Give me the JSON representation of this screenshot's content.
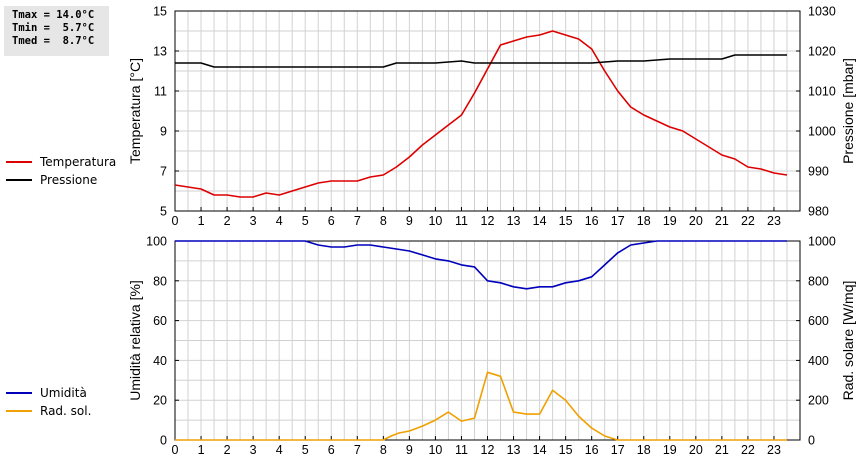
{
  "stats": {
    "tmax": "Tmax = 14.0°C",
    "tmin": "Tmin =  5.7°C",
    "tmed": "Tmed =  8.7°C"
  },
  "legend_top": [
    {
      "name": "Temperatura",
      "color": "#dd0000"
    },
    {
      "name": "Pressione",
      "color": "#000000"
    }
  ],
  "legend_bottom": [
    {
      "name": "Umidità",
      "color": "#0000bb"
    },
    {
      "name": "Rad. sol.",
      "color": "#f0a000"
    }
  ],
  "chart_data": [
    {
      "type": "line",
      "title": "",
      "xlabel": "",
      "xlim": [
        0,
        24
      ],
      "x_ticks": [
        "0",
        "1",
        "2",
        "3",
        "4",
        "5",
        "6",
        "7",
        "8",
        "9",
        "10",
        "11",
        "12",
        "13",
        "14",
        "15",
        "16",
        "17",
        "18",
        "19",
        "20",
        "21",
        "22",
        "23"
      ],
      "ylabel": "Temperatura [°C]",
      "ylim": [
        5,
        15
      ],
      "y_ticks": [
        "5",
        "7",
        "9",
        "11",
        "13",
        "15"
      ],
      "y2label": "Pressione [mbar]",
      "y2lim": [
        980,
        1030
      ],
      "y2_ticks": [
        "980",
        "990",
        "1000",
        "1010",
        "1020",
        "1030"
      ],
      "grid": true,
      "series": [
        {
          "name": "Temperatura",
          "axis": "left",
          "color": "#dd0000",
          "x": [
            0,
            0.5,
            1,
            1.5,
            2,
            2.5,
            3,
            3.5,
            4,
            4.5,
            5,
            5.5,
            6,
            6.5,
            7,
            7.5,
            8,
            8.5,
            9,
            9.5,
            10,
            10.5,
            11,
            11.5,
            12,
            12.5,
            13,
            13.5,
            14,
            14.5,
            15,
            15.5,
            16,
            16.5,
            17,
            17.5,
            18,
            18.5,
            19,
            19.5,
            20,
            20.5,
            21,
            21.5,
            22,
            22.5,
            23,
            23.5
          ],
          "y": [
            6.3,
            6.2,
            6.1,
            5.8,
            5.8,
            5.7,
            5.7,
            5.9,
            5.8,
            6.0,
            6.2,
            6.4,
            6.5,
            6.5,
            6.5,
            6.7,
            6.8,
            7.2,
            7.7,
            8.3,
            8.8,
            9.3,
            9.8,
            10.9,
            12.1,
            13.3,
            13.5,
            13.7,
            13.8,
            14.0,
            13.8,
            13.6,
            13.1,
            12.0,
            11.0,
            10.2,
            9.8,
            9.5,
            9.2,
            9.0,
            8.6,
            8.2,
            7.8,
            7.6,
            7.2,
            7.1,
            6.9,
            6.8
          ]
        },
        {
          "name": "Pressione",
          "axis": "right",
          "color": "#000000",
          "x": [
            0,
            1,
            1.5,
            3,
            8,
            8.5,
            10,
            11,
            11.5,
            12,
            14,
            16,
            17,
            18,
            19,
            21,
            21.5,
            23.5
          ],
          "y": [
            1017,
            1017,
            1016,
            1016,
            1016,
            1017,
            1017,
            1017.5,
            1017,
            1017,
            1017,
            1017,
            1017.5,
            1017.5,
            1018,
            1018,
            1019,
            1019
          ]
        }
      ]
    },
    {
      "type": "line",
      "title": "",
      "xlabel": "",
      "xlim": [
        0,
        24
      ],
      "x_ticks": [
        "0",
        "1",
        "2",
        "3",
        "4",
        "5",
        "6",
        "7",
        "8",
        "9",
        "10",
        "11",
        "12",
        "13",
        "14",
        "15",
        "16",
        "17",
        "18",
        "19",
        "20",
        "21",
        "22",
        "23"
      ],
      "ylabel": "Umidità relativa [%]",
      "ylim": [
        0,
        100
      ],
      "y_ticks": [
        "0",
        "20",
        "40",
        "60",
        "80",
        "100"
      ],
      "y2label": "Rad. solare [W/mq]",
      "y2lim": [
        0,
        1000
      ],
      "y2_ticks": [
        "0",
        "200",
        "400",
        "600",
        "800",
        "1000"
      ],
      "grid": true,
      "series": [
        {
          "name": "Umidità",
          "axis": "left",
          "color": "#0000bb",
          "x": [
            0,
            1,
            2,
            3,
            4,
            5,
            5.5,
            6,
            6.5,
            7,
            7.5,
            8,
            8.5,
            9,
            9.5,
            10,
            10.5,
            11,
            11.5,
            12,
            12.5,
            13,
            13.5,
            14,
            14.5,
            15,
            15.5,
            16,
            16.5,
            17,
            17.5,
            18,
            18.5,
            19,
            20,
            21,
            22,
            23,
            23.5
          ],
          "y": [
            100,
            100,
            100,
            100,
            100,
            100,
            98,
            97,
            97,
            98,
            98,
            97,
            96,
            95,
            93,
            91,
            90,
            88,
            87,
            80,
            79,
            77,
            76,
            77,
            77,
            79,
            80,
            82,
            88,
            94,
            98,
            99,
            100,
            100,
            100,
            100,
            100,
            100,
            100
          ]
        },
        {
          "name": "Rad. sol.",
          "axis": "right",
          "color": "#f0a000",
          "x": [
            0,
            1,
            2,
            3,
            4,
            5,
            6,
            7,
            8,
            8.3,
            8.6,
            9,
            9.5,
            10,
            10.5,
            11,
            11.5,
            12,
            12.5,
            13,
            13.5,
            14,
            14.5,
            15,
            15.5,
            16,
            16.5,
            17,
            17.5,
            18,
            19,
            20,
            21,
            22,
            23,
            23.5
          ],
          "y": [
            0,
            0,
            0,
            0,
            0,
            0,
            0,
            0,
            0,
            20,
            35,
            45,
            70,
            100,
            140,
            95,
            110,
            340,
            320,
            140,
            130,
            130,
            250,
            200,
            120,
            60,
            20,
            0,
            0,
            0,
            0,
            0,
            0,
            0,
            0,
            0
          ]
        }
      ]
    }
  ]
}
